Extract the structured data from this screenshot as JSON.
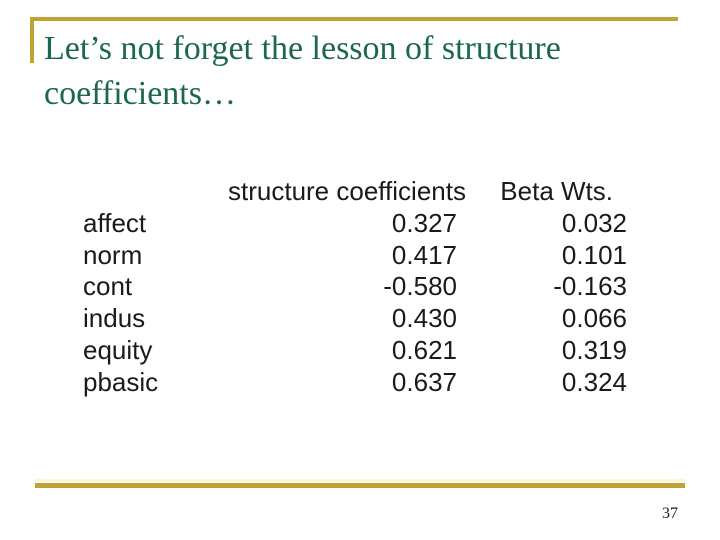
{
  "slide": {
    "title": {
      "lines": [
        "Let’s not forget the lesson of structure",
        "coefficients…"
      ]
    },
    "table": {
      "col1_header": "structure coefficients",
      "col2_header": "Beta Wts.",
      "rows": [
        {
          "label": "affect",
          "structure": "0.327",
          "beta": "0.032"
        },
        {
          "label": "norm",
          "structure": "0.417",
          "beta": "0.101"
        },
        {
          "label": "cont",
          "structure": "-0.580",
          "beta": "-0.163"
        },
        {
          "label": "indus",
          "structure": "0.430",
          "beta": "0.066"
        },
        {
          "label": "equity",
          "structure": "0.621",
          "beta": "0.319"
        },
        {
          "label": "pbasic",
          "structure": "0.637",
          "beta": "0.324"
        }
      ]
    },
    "page_number": "37",
    "colors": {
      "accent_gold": "#c2a136",
      "title_green": "#1c6751",
      "body_text": "#1a1a1a"
    }
  }
}
